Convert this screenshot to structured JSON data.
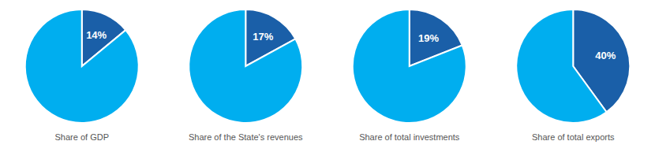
{
  "chart_data": [
    {
      "type": "pie",
      "title": "Share of GDP",
      "values": [
        14,
        86
      ],
      "value_labels": [
        "14%",
        null
      ],
      "data_labels": true,
      "colors": [
        "#1A5FA8",
        "#00AEEF"
      ]
    },
    {
      "type": "pie",
      "title": "Share of the State's revenues",
      "values": [
        17,
        83
      ],
      "value_labels": [
        "17%",
        null
      ],
      "data_labels": true,
      "colors": [
        "#1A5FA8",
        "#00AEEF"
      ]
    },
    {
      "type": "pie",
      "title": "Share of total investments",
      "values": [
        19,
        81
      ],
      "value_labels": [
        "19%",
        null
      ],
      "data_labels": true,
      "colors": [
        "#1A5FA8",
        "#00AEEF"
      ]
    },
    {
      "type": "pie",
      "title": "Share of total exports",
      "values": [
        40,
        60
      ],
      "value_labels": [
        "40%",
        null
      ],
      "data_labels": true,
      "colors": [
        "#1A5FA8",
        "#00AEEF"
      ]
    }
  ]
}
